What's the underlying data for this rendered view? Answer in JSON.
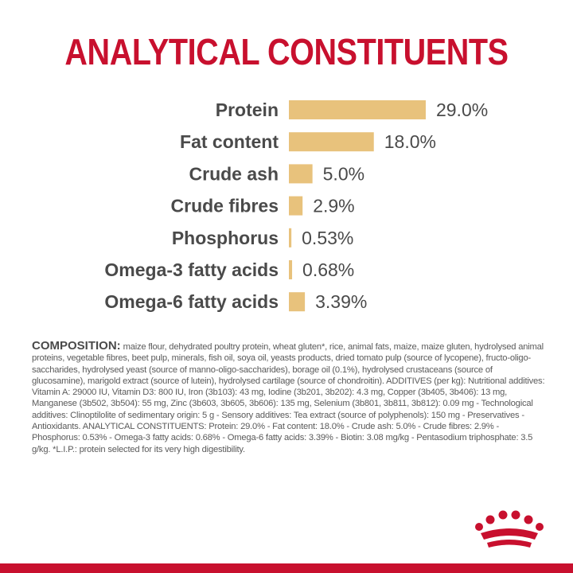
{
  "title": "ANALYTICAL CONSTITUENTS",
  "chart_data": {
    "type": "bar",
    "orientation": "horizontal",
    "categories": [
      "Protein",
      "Fat content",
      "Crude ash",
      "Crude fibres",
      "Phosphorus",
      "Omega-3 fatty acids",
      "Omega-6 fatty acids"
    ],
    "values": [
      29.0,
      18.0,
      5.0,
      2.9,
      0.53,
      0.68,
      3.39
    ],
    "value_labels": [
      "29.0%",
      "18.0%",
      "5.0%",
      "2.9%",
      "0.53%",
      "0.68%",
      "3.39%"
    ],
    "title": "ANALYTICAL CONSTITUENTS",
    "xlabel": "",
    "ylabel": "",
    "grid": false,
    "bar_color": "#e8c27c",
    "label_color": "#4a4a4a"
  },
  "composition": {
    "heading": "COMPOSITION:",
    "text": "maize flour, dehydrated poultry protein, wheat gluten*, rice, animal fats, maize, maize gluten, hydrolysed animal proteins, vegetable fibres, beet pulp, minerals, fish oil, soya oil, yeasts products, dried tomato pulp (source of lycopene), fructo-oligo-saccharides, hydrolysed yeast (source of manno-oligo-saccharides), borage oil (0.1%), hydrolysed crustaceans (source of glucosamine), marigold extract (source of lutein), hydrolysed cartilage (source of chondroitin). ADDITIVES (per kg): Nutritional additives: Vitamin A: 29000 IU, Vitamin D3: 800 IU, Iron (3b103): 43 mg, Iodine (3b201, 3b202): 4.3 mg, Copper (3b405, 3b406): 13 mg, Manganese (3b502, 3b504): 55 mg, Zinc (3b603, 3b605, 3b606): 135 mg, Selenium (3b801, 3b811, 3b812): 0.09 mg - Technological additives: Clinoptilolite of sedimentary origin: 5 g - Sensory additives: Tea extract (source of polyphenols): 150 mg - Preservatives - Antioxidants. ANALYTICAL CONSTITUENTS: Protein: 29.0% - Fat content: 18.0% - Crude ash: 5.0% - Crude fibres: 2.9% - Phosphorus: 0.53% - Omega-3 fatty acids: 0.68% - Omega-6 fatty acids: 3.39% - Biotin: 3.08 mg/kg - Pentasodium triphosphate: 3.5 g/kg. *L.I.P.: protein selected for its very high digestibility."
  },
  "logo": {
    "name": "crown-logo",
    "color": "#c8102e"
  },
  "colors": {
    "accent": "#c8102e",
    "bar": "#e8c27c",
    "text": "#4a4a4a"
  }
}
